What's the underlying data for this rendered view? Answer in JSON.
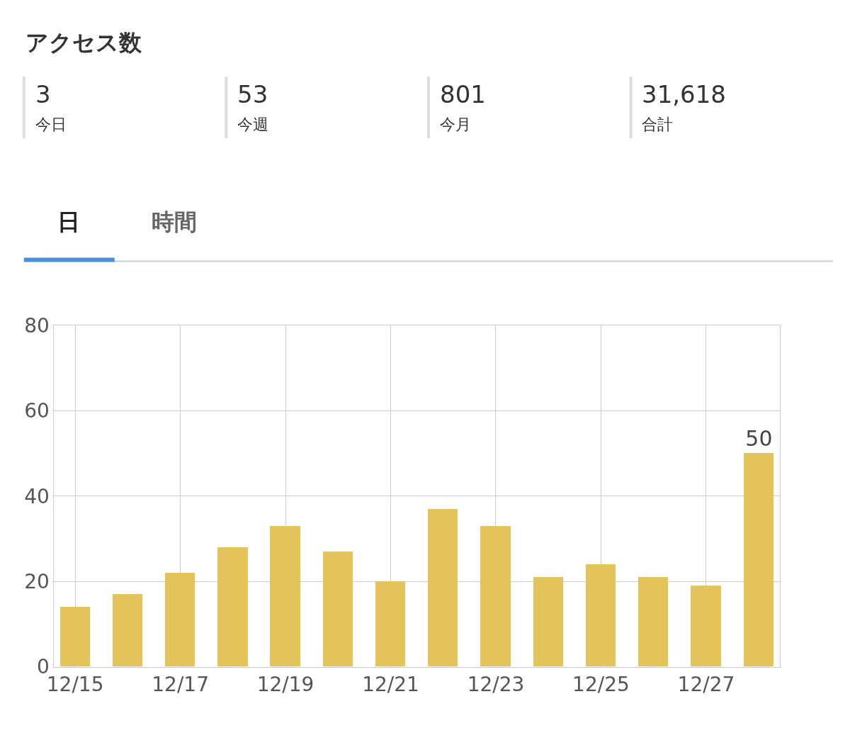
{
  "chart_data": [
    {
      "type": "other",
      "title": "アクセス数",
      "annotations": [
        "3",
        "今日",
        "53",
        "今週",
        "801",
        "今月",
        "31,618",
        "合計",
        "日",
        "時間"
      ]
    },
    {
      "type": "bar",
      "categories": [
        "12/15",
        null,
        "12/17",
        null,
        "12/19",
        null,
        "12/21",
        null,
        "12/23",
        null,
        "12/25",
        null,
        "12/27",
        null
      ],
      "values": [
        14,
        17,
        22,
        28,
        33,
        27,
        20,
        37,
        33,
        21,
        24,
        21,
        19,
        50
      ],
      "value_labels": [
        null,
        null,
        null,
        null,
        null,
        null,
        null,
        null,
        null,
        null,
        null,
        null,
        null,
        "50"
      ],
      "color": "#e3c35a",
      "ylim": [
        0,
        80
      ],
      "yticks": [
        0,
        20,
        40,
        60,
        80
      ],
      "grid": true
    }
  ]
}
